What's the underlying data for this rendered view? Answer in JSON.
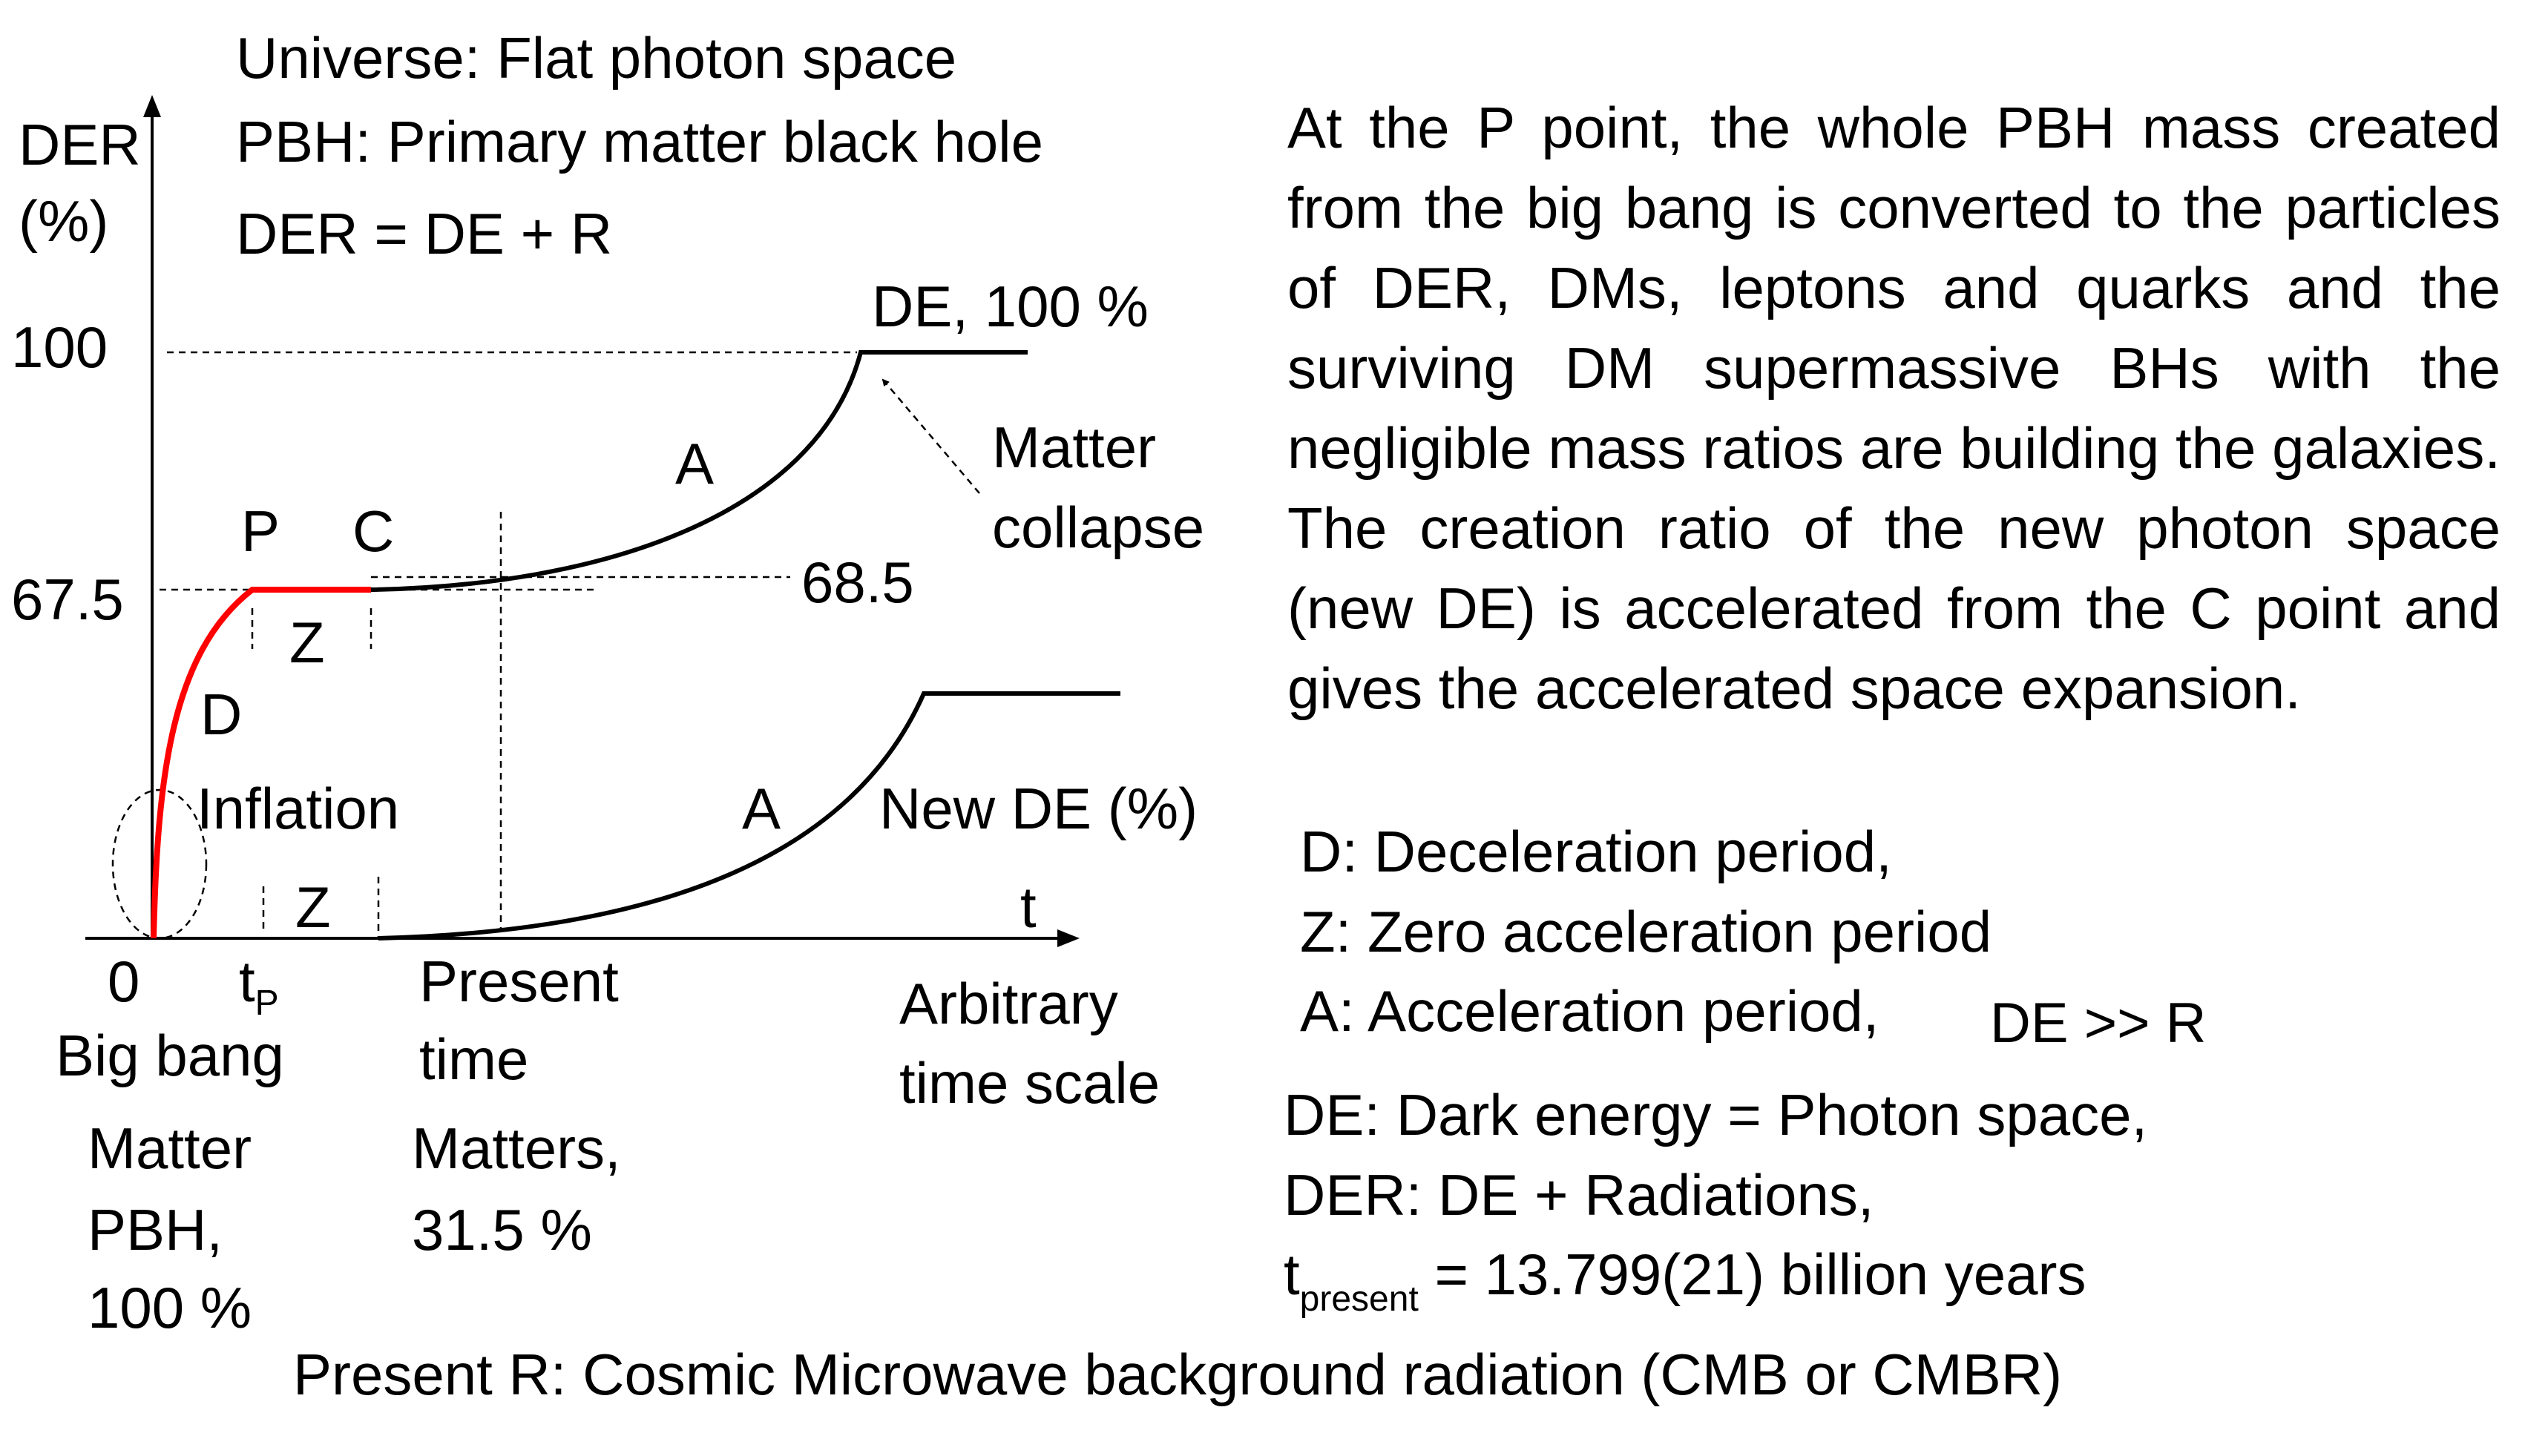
{
  "header": {
    "universe": "Universe: Flat photon space",
    "pbh": "PBH: Primary matter black hole",
    "der_def": "DER = DE + R"
  },
  "axes": {
    "y_label_1": "DER",
    "y_label_2": "(%)",
    "y_tick_100": "100",
    "y_tick_67": "67.5",
    "x_label": "t",
    "origin": "0",
    "tp_main": "t",
    "tp_sub": "P"
  },
  "labels": {
    "de_100": "DE, 100 %",
    "matter_collapse_1": "Matter",
    "matter_collapse_2": "collapse",
    "point_p": "P",
    "point_c": "C",
    "val_68_5": "68.5",
    "z_upper": "Z",
    "a_upper": "A",
    "d_label": "D",
    "inflation": "Inflation",
    "a_lower": "A",
    "new_de": "New DE (%)",
    "z_lower": "Z"
  },
  "bottom": {
    "big_bang": "Big bang",
    "matter_pbh_1": "Matter",
    "matter_pbh_2": "PBH,",
    "matter_pbh_3": "100 %",
    "present_1": "Present",
    "present_2": "time",
    "matters_1": "Matters,",
    "matters_2": "31.5 %",
    "arbitrary_1": "Arbitrary",
    "arbitrary_2": "time scale"
  },
  "right": {
    "paragraph": "At the P point, the whole PBH mass created from the big bang is converted to the particles of DER, DMs, leptons and quarks and the surviving DM supermassive BHs with the negligible mass ratios are building the galaxies. The creation ratio of the new photon space (new DE) is accelerated from the C point and gives the accelerated space expansion.",
    "legend_d": "D: Deceleration period,",
    "legend_z": "Z: Zero acceleration period",
    "legend_a": "A: Acceleration period,",
    "legend_de_r": "DE >> R",
    "def_de": "DE: Dark energy = Photon space,",
    "def_der": "DER: DE + Radiations,",
    "tpresent_main": "t",
    "tpresent_sub": "present",
    "tpresent_value": " = 13.799(21) billion years"
  },
  "footer": "Present R: Cosmic Microwave background radiation (CMB or CMBR)",
  "colors": {
    "red_curve": "#ff0000",
    "black_curve": "#000000"
  }
}
